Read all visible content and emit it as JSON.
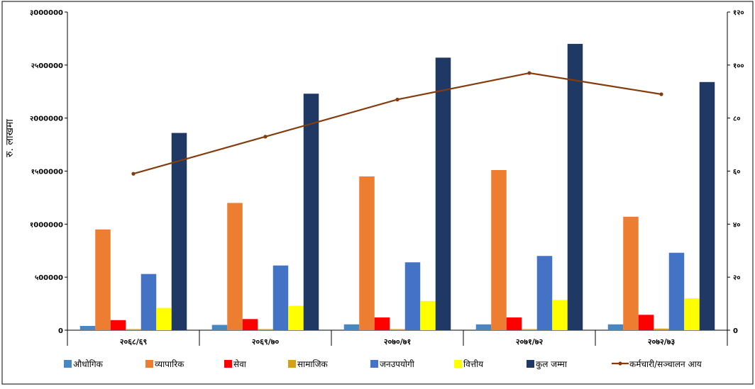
{
  "chart_data": {
    "type": "bar",
    "ylabel": "रु. लाखमा",
    "categories": [
      "२०६८/६९",
      "२०६९/७०",
      "२०७०/७१",
      "२०७१/७२",
      "२०७२/७३"
    ],
    "ylim": [
      0,
      3000000
    ],
    "y_ticks": [
      0,
      500000,
      1000000,
      1500000,
      2000000,
      2500000,
      3000000
    ],
    "y_tick_labels": [
      "0",
      "५00000",
      "१000000",
      "१५00000",
      "२000000",
      "२५00000",
      "३000000"
    ],
    "y2lim": [
      0,
      120
    ],
    "y2_ticks": [
      0,
      20,
      40,
      60,
      80,
      100,
      120
    ],
    "y2_tick_labels": [
      "0",
      "२०",
      "४०",
      "६०",
      "८०",
      "१००",
      "१२०"
    ],
    "series": [
      {
        "name": "औधोगिक",
        "color": "#4a86c0",
        "values": [
          40000,
          50000,
          55000,
          55000,
          55000
        ]
      },
      {
        "name": "व्यापारिक",
        "color": "#ed7d31",
        "values": [
          950000,
          1200000,
          1450000,
          1510000,
          1070000
        ]
      },
      {
        "name": "सेवा",
        "color": "#ff0000",
        "values": [
          95000,
          105000,
          120000,
          120000,
          145000
        ]
      },
      {
        "name": "सामाजिक",
        "color": "#d4a017",
        "values": [
          10000,
          10000,
          10000,
          10000,
          15000
        ]
      },
      {
        "name": "जनउपयोगी",
        "color": "#4472c4",
        "values": [
          530000,
          610000,
          640000,
          700000,
          730000
        ]
      },
      {
        "name": "वित्तीय",
        "color": "#ffff00",
        "values": [
          210000,
          230000,
          275000,
          285000,
          300000
        ]
      },
      {
        "name": "कुल जम्मा",
        "color": "#1f3864",
        "values": [
          1860000,
          2230000,
          2570000,
          2700000,
          2340000
        ]
      },
      {
        "name": "कर्मचारी/सञ्चालन आय",
        "color": "#843c0c",
        "type": "line",
        "axis": "right",
        "values": [
          59,
          73,
          87,
          97,
          89
        ]
      }
    ],
    "legend_position": "bottom",
    "grid": false
  }
}
